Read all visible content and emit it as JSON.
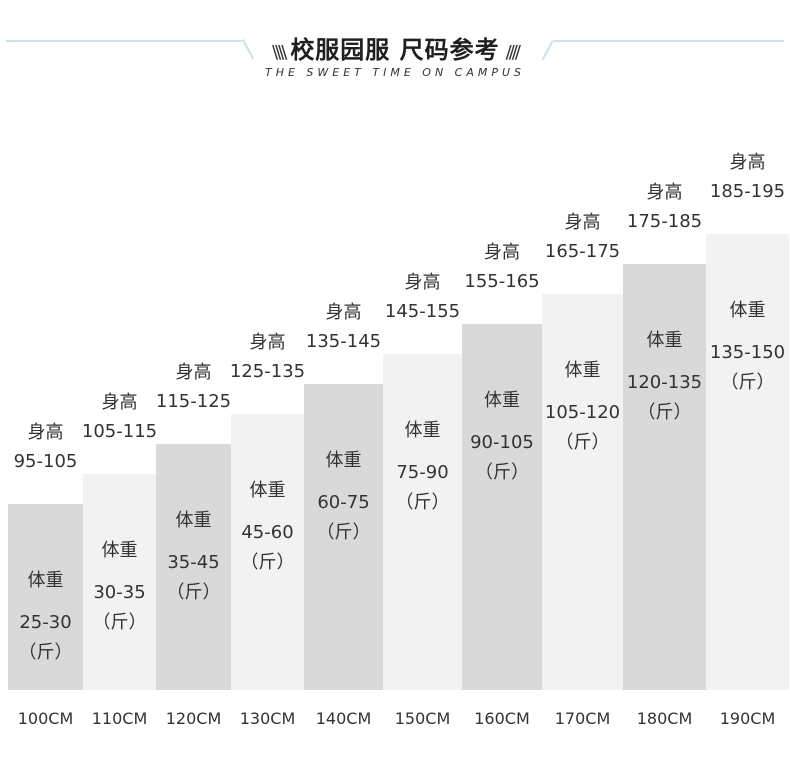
{
  "header": {
    "title": "校服园服 尺码参考",
    "hatch_left": "\\\\\\\\",
    "hatch_right": "////",
    "subtitle": "THE SWEET TIME ON CAMPUS"
  },
  "chart_data": {
    "type": "bar",
    "height_prefix": "身高",
    "weight_prefix": "体重",
    "weight_unit": "（斤）",
    "categories": [
      "100CM",
      "110CM",
      "120CM",
      "130CM",
      "140CM",
      "150CM",
      "160CM",
      "170CM",
      "180CM",
      "190CM"
    ],
    "heights": [
      "95-105",
      "105-115",
      "115-125",
      "125-135",
      "135-145",
      "145-155",
      "155-165",
      "165-175",
      "175-185",
      "185-195"
    ],
    "weights": [
      "25-30",
      "30-35",
      "35-45",
      "45-60",
      "60-75",
      "75-90",
      "90-105",
      "105-120",
      "120-135",
      "135-150"
    ],
    "values": [
      1,
      2,
      3,
      4,
      5,
      6,
      7,
      8,
      9,
      10
    ],
    "colors": {
      "dark": "#d9d9d9",
      "light": "#f2f2f2"
    }
  }
}
